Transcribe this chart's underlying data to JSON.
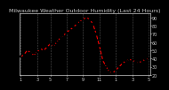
{
  "title": "Milwaukee Weather Outdoor Humidity (Last 24 Hours)",
  "y_values": [
    42,
    45,
    50,
    47,
    44,
    48,
    52,
    50,
    54,
    58,
    55,
    60,
    65,
    68,
    72,
    75,
    78,
    82,
    85,
    88,
    90,
    88,
    82,
    70,
    55,
    38,
    30,
    24,
    22,
    26,
    30,
    34,
    37,
    39,
    38,
    36,
    35,
    37,
    39,
    40
  ],
  "ylim": [
    20,
    95
  ],
  "yticks": [
    20,
    30,
    40,
    50,
    60,
    70,
    80,
    90
  ],
  "ytick_labels": [
    "20",
    "30",
    "40",
    "50",
    "60",
    "70",
    "80",
    "90"
  ],
  "x_tick_positions": [
    0,
    5,
    9,
    14,
    19,
    24,
    29,
    34,
    39
  ],
  "x_tick_labels": [
    "1",
    "3",
    "5",
    "7",
    "9",
    "11",
    "1",
    "3",
    "5"
  ],
  "line_color": "#ff0000",
  "marker_color": "#000000",
  "bg_color": "#000000",
  "plot_bg_color": "#000000",
  "title_color": "#cccccc",
  "tick_color": "#cccccc",
  "grid_color": "#555555",
  "title_fontsize": 4.5,
  "tick_fontsize": 3.5,
  "line_width": 0.8,
  "marker_size": 1.8,
  "num_gridlines_x": 9
}
